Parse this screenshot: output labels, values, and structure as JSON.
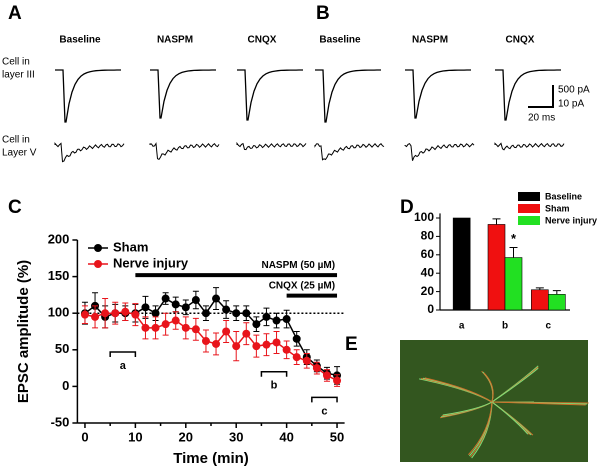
{
  "panel_labels": [
    "A",
    "B",
    "C",
    "D",
    "E"
  ],
  "traces": {
    "conditions": [
      "Baseline",
      "NASPM",
      "CNQX"
    ],
    "rows": [
      [
        "Cell in",
        "layer III"
      ],
      [
        "Cell in",
        "Layer V"
      ]
    ],
    "scale_bar": [
      "500 pA",
      "10 pA",
      "20 ms"
    ]
  },
  "chart_data": [
    {
      "type": "line",
      "y_label": "EPSC amplitude (%)",
      "x_label": "Time (min)",
      "x": [
        0,
        2,
        4,
        6,
        8,
        10,
        12,
        14,
        16,
        18,
        20,
        22,
        24,
        26,
        28,
        30,
        32,
        34,
        36,
        38,
        40,
        42,
        44,
        46,
        48,
        50
      ],
      "series": [
        {
          "name": "Sham",
          "color": "#000000",
          "values": [
            100,
            110,
            95,
            100,
            100,
            100,
            108,
            100,
            120,
            112,
            108,
            118,
            100,
            120,
            105,
            100,
            100,
            85,
            95,
            90,
            92,
            65,
            40,
            28,
            18,
            15
          ],
          "errors": [
            15,
            18,
            15,
            12,
            10,
            12,
            15,
            10,
            8,
            10,
            10,
            12,
            10,
            15,
            12,
            10,
            10,
            10,
            12,
            10,
            12,
            10,
            10,
            8,
            8,
            12
          ]
        },
        {
          "name": "Nerve injury",
          "color": "#e8141b",
          "values": [
            98,
            95,
            100,
            100,
            102,
            98,
            80,
            80,
            85,
            90,
            80,
            78,
            62,
            58,
            75,
            55,
            72,
            55,
            57,
            60,
            50,
            40,
            35,
            25,
            15,
            8
          ],
          "errors": [
            12,
            15,
            20,
            15,
            12,
            15,
            15,
            15,
            15,
            12,
            15,
            15,
            15,
            15,
            15,
            20,
            15,
            15,
            15,
            15,
            12,
            10,
            10,
            8,
            8,
            8
          ]
        }
      ],
      "xlim": [
        -1.5,
        51.5
      ],
      "ylim": [
        -50,
        200
      ],
      "xticks": [
        0,
        5,
        10,
        15,
        20,
        25,
        30,
        35,
        40,
        45,
        50
      ],
      "yticks": [
        -50,
        0,
        50,
        100,
        150,
        200
      ],
      "reference_y": 100,
      "annotations": [
        {
          "text": "NASPM (50 µM)",
          "x": [
            10,
            50
          ],
          "y": 152
        },
        {
          "text": "CNQX (25 µM)",
          "x": [
            40,
            50
          ],
          "y": 124
        }
      ],
      "brackets": [
        {
          "label": "a",
          "x": [
            5,
            10
          ],
          "y": 47
        },
        {
          "label": "b",
          "x": [
            35,
            40
          ],
          "y": 20
        },
        {
          "label": "c",
          "x": [
            45,
            50
          ],
          "y": -15
        }
      ]
    },
    {
      "type": "bar",
      "categories": [
        "a",
        "b",
        "c"
      ],
      "series": [
        {
          "name": "Baseline",
          "color": "#000000",
          "values": [
            100,
            null,
            null
          ],
          "errors": [
            0,
            null,
            null
          ]
        },
        {
          "name": "Sham",
          "color": "#f01010",
          "values": [
            null,
            93,
            22
          ],
          "errors": [
            null,
            6,
            2
          ]
        },
        {
          "name": "Nerve injury",
          "color": "#22e022",
          "values": [
            null,
            57,
            17
          ],
          "errors": [
            null,
            11,
            4
          ]
        }
      ],
      "ylim": [
        0,
        105
      ],
      "yticks": [
        0,
        20,
        40,
        60,
        80,
        100
      ],
      "annotation": "*"
    }
  ]
}
